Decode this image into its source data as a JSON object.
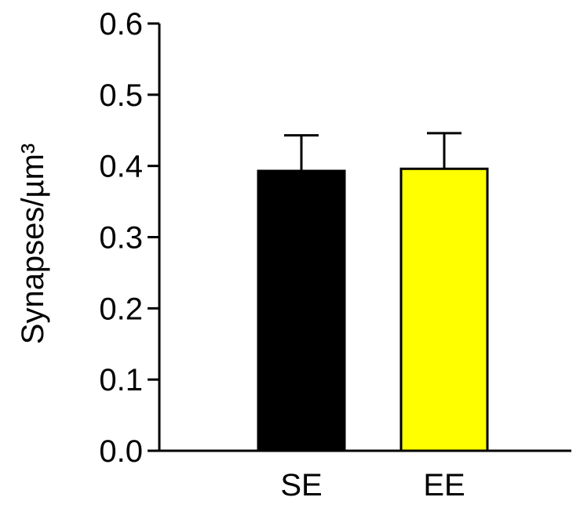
{
  "chart_data": {
    "type": "bar",
    "title": "",
    "xlabel": "",
    "ylabel": "Synapses/µm³",
    "ylim": [
      0,
      0.6
    ],
    "yticks": [
      "0.0",
      "0.1",
      "0.2",
      "0.3",
      "0.4",
      "0.5",
      "0.6"
    ],
    "categories": [
      "SE",
      "EE"
    ],
    "values": [
      0.393,
      0.396
    ],
    "error_upper": [
      0.05,
      0.05
    ],
    "colors": [
      "#000000",
      "#ffff00"
    ],
    "grid": false,
    "legend": "none"
  }
}
